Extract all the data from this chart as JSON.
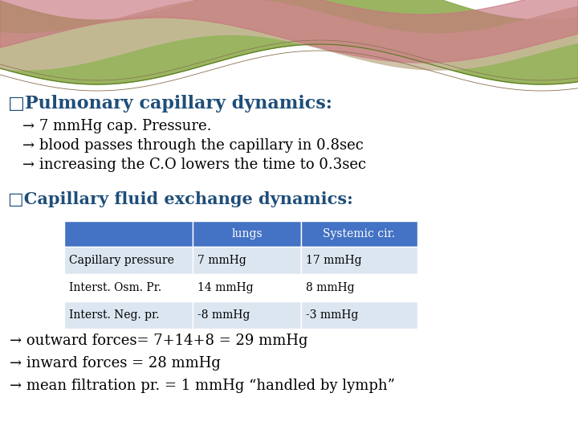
{
  "title1": "□Pulmonary capillary dynamics:",
  "bullet1": "→ 7 mmHg cap. Pressure.",
  "bullet2": "→ blood passes through the capillary in 0.8sec",
  "bullet3": "→ increasing the C.O lowers the time to 0.3sec",
  "title2": "□Capillary fluid exchange dynamics:",
  "table_headers": [
    "",
    "lungs",
    "Systemic cir."
  ],
  "table_rows": [
    [
      "Capillary pressure",
      "7 mmHg",
      "17 mmHg"
    ],
    [
      "Interst. Osm. Pr.",
      "14 mmHg",
      "8 mmHg"
    ],
    [
      "Interst. Neg. pr.",
      "-8 mmHg",
      "-3 mmHg"
    ]
  ],
  "footer1": "→ outward forces= 7+14+8 = 29 mmHg",
  "footer2": "→ inward forces = 28 mmHg",
  "footer3": "→ mean filtration pr. = 1 mmHg “handled by lymph”",
  "title_color": "#1f4e79",
  "text_color": "#000000",
  "table_header_bg": "#4472c4",
  "table_header_fg": "#ffffff",
  "table_row_even_bg": "#dce6f1",
  "table_row_odd_bg": "#ffffff",
  "bg_color": "#ffffff",
  "font_family": "DejaVu Serif",
  "wave_green": "#8fac50",
  "wave_tan": "#c8b99a",
  "wave_pink": "#c97580"
}
